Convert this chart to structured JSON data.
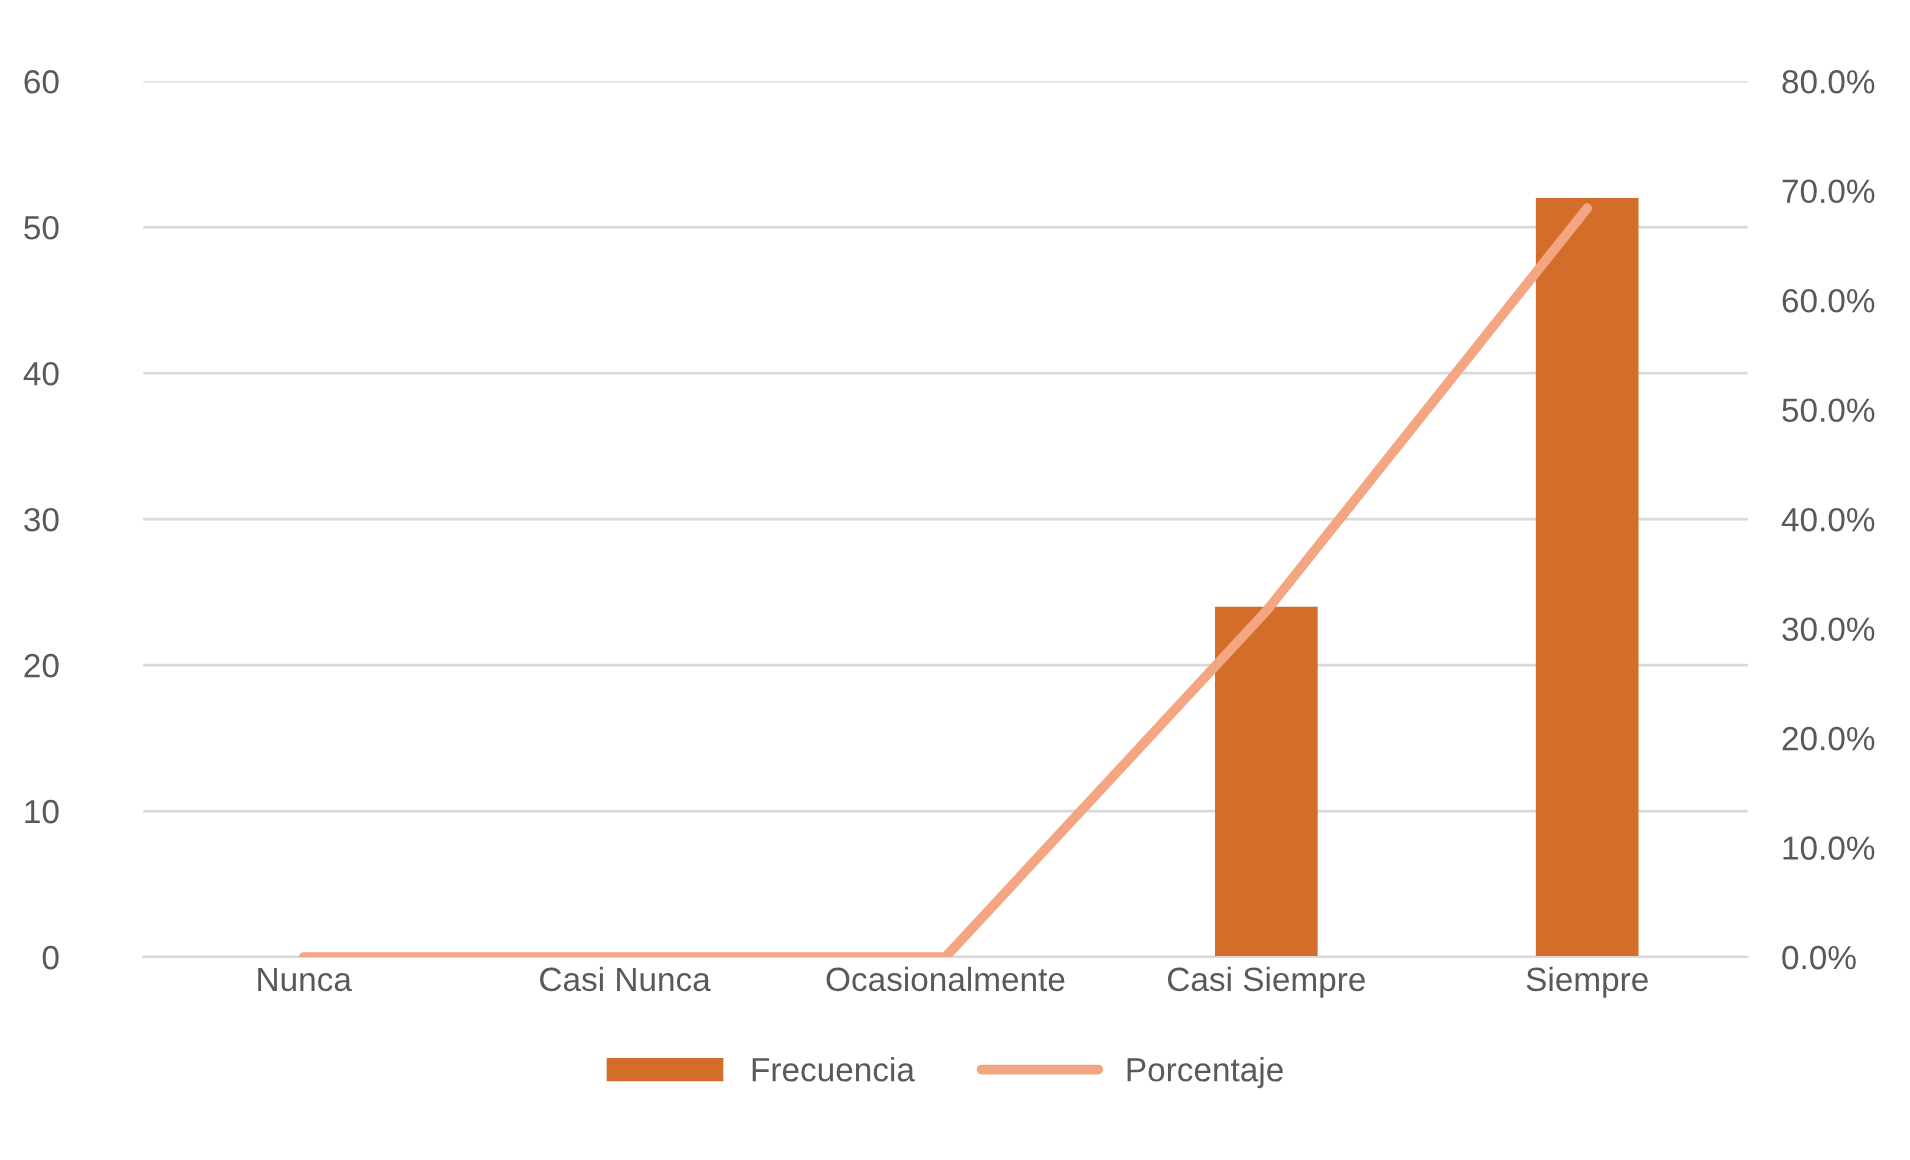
{
  "chart_data": {
    "type": "bar",
    "categories": [
      "Nunca",
      "Casi Nunca",
      "Ocasionalmente",
      "Casi Siempre",
      "Siempre"
    ],
    "series": [
      {
        "name": "Frecuencia",
        "color": "#d26d2a",
        "values": [
          0,
          0,
          0,
          24,
          52
        ]
      },
      {
        "name": "Porcentaje",
        "type": "line",
        "axis": "y2",
        "color": "#f4a582",
        "values": [
          0,
          0,
          0,
          31.6,
          68.4
        ]
      }
    ],
    "ylim": [
      0,
      60
    ],
    "yticks": [
      0,
      10,
      20,
      30,
      40,
      50,
      60
    ],
    "y2lim": [
      0,
      80
    ],
    "y2ticks": [
      {
        "value": 0,
        "label": "0.0%"
      },
      {
        "value": 10,
        "label": "10.0%"
      },
      {
        "value": 20,
        "label": "20.0%"
      },
      {
        "value": 30,
        "label": "30.0%"
      },
      {
        "value": 40,
        "label": "40.0%"
      },
      {
        "value": 50,
        "label": "50.0%"
      },
      {
        "value": 60,
        "label": "60.0%"
      },
      {
        "value": 70,
        "label": "70.0%"
      },
      {
        "value": 80,
        "label": "80.0%"
      }
    ],
    "grid": "y",
    "legend": "bottom",
    "line_style": "solid",
    "marker": "none"
  }
}
